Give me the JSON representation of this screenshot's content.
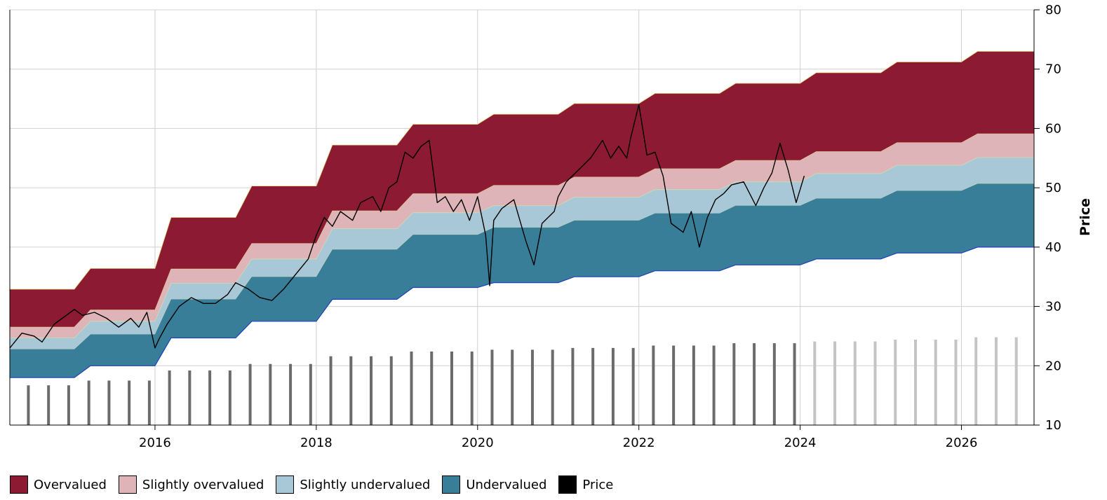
{
  "chart_data": {
    "type": "area",
    "xlim": [
      2014.2,
      2026.9
    ],
    "ylim": [
      10,
      80
    ],
    "x_ticks": [
      2016,
      2018,
      2020,
      2022,
      2024,
      2026
    ],
    "x_tick_labels": [
      "2016",
      "2018",
      "2020",
      "2022",
      "2024",
      "2026"
    ],
    "y_ticks": [
      10,
      20,
      30,
      40,
      50,
      60,
      70,
      80
    ],
    "y_tick_labels": [
      "10",
      "20",
      "30",
      "40",
      "50",
      "60",
      "70",
      "80"
    ],
    "ylabel": "Price",
    "y_axis_side": "right",
    "grid": true,
    "legend_position": "bottom-left",
    "valuation_bands": {
      "years": [
        2014.2,
        2015.0,
        2016.0,
        2017.0,
        2018.0,
        2019.0,
        2020.0,
        2021.0,
        2022.0,
        2023.0,
        2024.0,
        2025.0,
        2026.0,
        2026.9
      ],
      "transition": 0.2,
      "lower": [
        18.0,
        20.0,
        24.7,
        27.5,
        31.2,
        33.2,
        34.0,
        35.0,
        36.0,
        37.0,
        38.0,
        39.0,
        40.0,
        40.0
      ],
      "undervalued_top": [
        22.8,
        25.3,
        31.2,
        35.0,
        39.6,
        42.1,
        43.3,
        44.5,
        45.7,
        47.0,
        48.2,
        49.5,
        50.7,
        50.7
      ],
      "slightly_undervalued_top": [
        24.7,
        27.5,
        33.9,
        38.0,
        43.1,
        45.8,
        47.0,
        48.4,
        49.7,
        51.0,
        52.4,
        53.8,
        55.1,
        55.1
      ],
      "slightly_overvalued_top": [
        26.5,
        29.4,
        36.3,
        40.6,
        46.1,
        49.0,
        50.4,
        51.8,
        53.2,
        54.6,
        56.1,
        57.6,
        59.1,
        59.1
      ],
      "overvalued_top": [
        32.9,
        36.4,
        45.0,
        50.3,
        57.2,
        60.7,
        62.4,
        64.2,
        65.9,
        67.6,
        69.4,
        71.2,
        73.0,
        73.0
      ]
    },
    "series": [
      {
        "name": "Price",
        "x": [
          2014.2,
          2014.35,
          2014.5,
          2014.6,
          2014.75,
          2014.9,
          2015.0,
          2015.1,
          2015.25,
          2015.4,
          2015.55,
          2015.7,
          2015.8,
          2015.9,
          2016.0,
          2016.05,
          2016.15,
          2016.3,
          2016.45,
          2016.6,
          2016.75,
          2016.9,
          2017.0,
          2017.15,
          2017.3,
          2017.45,
          2017.6,
          2017.75,
          2017.9,
          2018.0,
          2018.1,
          2018.2,
          2018.3,
          2018.45,
          2018.55,
          2018.7,
          2018.8,
          2018.9,
          2019.0,
          2019.1,
          2019.2,
          2019.3,
          2019.4,
          2019.5,
          2019.6,
          2019.7,
          2019.8,
          2019.9,
          2020.0,
          2020.1,
          2020.15,
          2020.2,
          2020.3,
          2020.45,
          2020.6,
          2020.7,
          2020.8,
          2020.95,
          2021.0,
          2021.1,
          2021.25,
          2021.4,
          2021.55,
          2021.65,
          2021.75,
          2021.85,
          2021.9,
          2022.0,
          2022.1,
          2022.2,
          2022.3,
          2022.4,
          2022.55,
          2022.65,
          2022.75,
          2022.85,
          2022.95,
          2023.05,
          2023.15,
          2023.3,
          2023.45,
          2023.55,
          2023.65,
          2023.75,
          2023.85,
          2023.95,
          2024.05
        ],
        "y": [
          23.0,
          25.5,
          25.0,
          24.0,
          27.0,
          28.5,
          29.5,
          28.5,
          29.0,
          28.0,
          26.5,
          28.0,
          26.5,
          29.0,
          23.0,
          24.5,
          27.0,
          30.0,
          31.5,
          30.5,
          30.5,
          32.0,
          34.0,
          33.0,
          31.5,
          31.0,
          33.0,
          35.5,
          38.0,
          42.0,
          45.0,
          43.5,
          46.0,
          44.5,
          47.5,
          48.5,
          46.0,
          50.0,
          51.0,
          56.0,
          55.0,
          57.0,
          58.0,
          47.5,
          48.5,
          46.0,
          48.0,
          44.5,
          48.5,
          42.0,
          33.5,
          44.5,
          46.5,
          48.0,
          41.0,
          37.0,
          44.0,
          46.0,
          48.5,
          51.0,
          53.0,
          55.0,
          58.0,
          55.0,
          57.0,
          55.0,
          58.5,
          64.0,
          55.5,
          56.0,
          52.0,
          44.0,
          42.5,
          46.0,
          40.0,
          45.0,
          48.0,
          49.0,
          50.5,
          51.0,
          47.0,
          50.0,
          52.5,
          57.5,
          53.0,
          47.5,
          52.0
        ]
      },
      {
        "name": "bars-actual",
        "x": [
          2014.43,
          2014.68,
          2014.93,
          2015.18,
          2015.43,
          2015.68,
          2015.93,
          2016.18,
          2016.43,
          2016.68,
          2016.93,
          2017.18,
          2017.43,
          2017.68,
          2017.93,
          2018.18,
          2018.43,
          2018.68,
          2018.93,
          2019.18,
          2019.43,
          2019.68,
          2019.93,
          2020.18,
          2020.43,
          2020.68,
          2020.93,
          2021.18,
          2021.43,
          2021.68,
          2021.93,
          2022.18,
          2022.43,
          2022.68,
          2022.93,
          2023.18,
          2023.43,
          2023.68,
          2023.93
        ],
        "y": [
          16.7,
          16.7,
          16.7,
          17.5,
          17.5,
          17.5,
          17.5,
          19.2,
          19.2,
          19.2,
          19.2,
          20.3,
          20.3,
          20.3,
          20.3,
          21.6,
          21.6,
          21.6,
          21.6,
          22.4,
          22.4,
          22.4,
          22.4,
          22.7,
          22.7,
          22.7,
          22.7,
          23.0,
          23.0,
          23.0,
          23.0,
          23.4,
          23.4,
          23.4,
          23.4,
          23.8,
          23.8,
          23.8,
          23.8
        ]
      },
      {
        "name": "bars-forecast",
        "x": [
          2024.18,
          2024.43,
          2024.68,
          2024.93,
          2025.18,
          2025.43,
          2025.68,
          2025.93,
          2026.18,
          2026.43,
          2026.68
        ],
        "y": [
          24.1,
          24.1,
          24.1,
          24.1,
          24.4,
          24.4,
          24.4,
          24.4,
          24.8,
          24.8,
          24.8
        ]
      }
    ],
    "colors": {
      "overvalued": "#8b1a32",
      "slightly_overvalued": "#dfb4b8",
      "slightly_undervalued": "#a9c8d7",
      "undervalued": "#397e98",
      "price": "#000000",
      "bars_actual": "#6b6b6b",
      "bars_forecast": "#c4c4c4",
      "grid": "#d0d0d0",
      "lower_line": "#1f3fbf"
    }
  },
  "legend": {
    "items": [
      {
        "label": "Overvalued",
        "color": "#8b1a32"
      },
      {
        "label": "Slightly overvalued",
        "color": "#dfb4b8"
      },
      {
        "label": "Slightly undervalued",
        "color": "#a9c8d7"
      },
      {
        "label": "Undervalued",
        "color": "#397e98"
      },
      {
        "label": "Price",
        "color": "#000000"
      }
    ]
  }
}
